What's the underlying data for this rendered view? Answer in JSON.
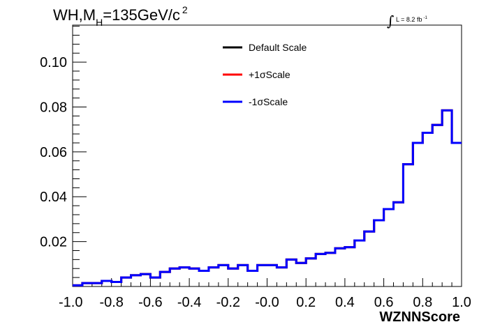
{
  "title": {
    "main": "WH,M",
    "subscript": "H",
    "value": "=135GeV/c",
    "superscript": "2"
  },
  "luminosity": {
    "integral_symbol": "∫",
    "text": "L = 8.2 fb",
    "superscript": "-1"
  },
  "colors": {
    "default": "#000000",
    "plus": "#ff0000",
    "minus": "#0000ff"
  },
  "chart_data": {
    "type": "line",
    "style": "step-histogram",
    "xlabel": "WZNNScore",
    "ylabel": "",
    "xlim": [
      -1.0,
      1.0
    ],
    "ylim": [
      0.0,
      0.1165
    ],
    "x_ticks": [
      "-1.0",
      "-0.8",
      "-0.6",
      "-0.4",
      "-0.2",
      "-0.0",
      "0.2",
      "0.4",
      "0.6",
      "0.8",
      "1.0"
    ],
    "x_tick_values": [
      -1.0,
      -0.8,
      -0.6,
      -0.4,
      -0.2,
      0.0,
      0.2,
      0.4,
      0.6,
      0.8,
      1.0
    ],
    "y_ticks": [
      "0.02",
      "0.04",
      "0.06",
      "0.08",
      "0.10"
    ],
    "y_tick_values": [
      0.02,
      0.04,
      0.06,
      0.08,
      0.1
    ],
    "grid": false,
    "legend_position": "top-center",
    "bin_edges": [
      -1.0,
      -0.95,
      -0.9,
      -0.85,
      -0.8,
      -0.75,
      -0.7,
      -0.65,
      -0.6,
      -0.55,
      -0.5,
      -0.45,
      -0.4,
      -0.35,
      -0.3,
      -0.25,
      -0.2,
      -0.15,
      -0.1,
      -0.05,
      0.0,
      0.05,
      0.1,
      0.15,
      0.2,
      0.25,
      0.3,
      0.35,
      0.4,
      0.45,
      0.5,
      0.55,
      0.6,
      0.65,
      0.7,
      0.75,
      0.8,
      0.85,
      0.9,
      0.95,
      1.0
    ],
    "series": [
      {
        "name": "Default Scale",
        "color": "#000000",
        "values": [
          0.0005,
          0.0015,
          0.0015,
          0.0025,
          0.002,
          0.004,
          0.005,
          0.0055,
          0.004,
          0.0065,
          0.008,
          0.0085,
          0.008,
          0.007,
          0.0085,
          0.0095,
          0.008,
          0.0095,
          0.007,
          0.0095,
          0.0095,
          0.0085,
          0.012,
          0.0105,
          0.0125,
          0.0145,
          0.015,
          0.017,
          0.0175,
          0.0205,
          0.0245,
          0.0295,
          0.0345,
          0.0375,
          0.0545,
          0.064,
          0.0685,
          0.072,
          0.0785,
          0.064
        ]
      },
      {
        "name": "+1σScale",
        "color": "#ff0000",
        "values": [
          0.0005,
          0.0015,
          0.0015,
          0.0025,
          0.002,
          0.004,
          0.005,
          0.0055,
          0.004,
          0.0065,
          0.008,
          0.0085,
          0.008,
          0.007,
          0.0085,
          0.0095,
          0.008,
          0.0095,
          0.007,
          0.0095,
          0.0095,
          0.0085,
          0.012,
          0.0105,
          0.0125,
          0.0145,
          0.015,
          0.017,
          0.0175,
          0.0205,
          0.0245,
          0.0295,
          0.0345,
          0.0375,
          0.0545,
          0.064,
          0.0685,
          0.072,
          0.0785,
          0.064
        ]
      },
      {
        "name": "-1σScale",
        "color": "#0000ff",
        "values": [
          0.0005,
          0.0015,
          0.0015,
          0.0025,
          0.002,
          0.004,
          0.005,
          0.0055,
          0.004,
          0.0065,
          0.008,
          0.0085,
          0.008,
          0.007,
          0.0085,
          0.0095,
          0.008,
          0.0095,
          0.007,
          0.0095,
          0.0095,
          0.0085,
          0.012,
          0.0105,
          0.0125,
          0.0145,
          0.015,
          0.017,
          0.0175,
          0.0205,
          0.0245,
          0.0295,
          0.0345,
          0.0375,
          0.0545,
          0.064,
          0.0685,
          0.072,
          0.0785,
          0.064
        ]
      }
    ]
  }
}
